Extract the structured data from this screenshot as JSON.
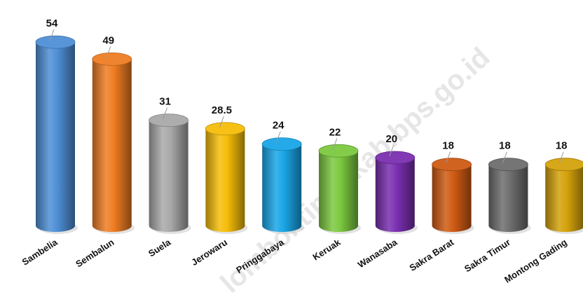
{
  "watermark_text": "lomboktimurkab.bps.go.id",
  "chart_data": {
    "type": "bar",
    "style": "3d-cylinder",
    "title": "",
    "xlabel": "",
    "ylabel": "",
    "ylim": [
      0,
      60
    ],
    "grid": false,
    "legend": "none",
    "categories": [
      "Sambelia",
      "Sembalun",
      "Suela",
      "Jerowaru",
      "Pringgabaya",
      "Keruak",
      "Wanasaba",
      "Sakra Barat",
      "Sakra Timur",
      "Montong Gading"
    ],
    "values": [
      54,
      49,
      31,
      28.5,
      24,
      22,
      20,
      18,
      18,
      18
    ],
    "value_labels": [
      "54",
      "49",
      "31",
      "28.5",
      "24",
      "22",
      "20",
      "18",
      "18",
      "18"
    ],
    "colors": [
      "#4f8fd6",
      "#ef7d23",
      "#a9a9a9",
      "#f5bd0a",
      "#1aa6e8",
      "#7cc940",
      "#7a2fb0",
      "#cf5b14",
      "#6e6e6e",
      "#d4a20c"
    ]
  }
}
